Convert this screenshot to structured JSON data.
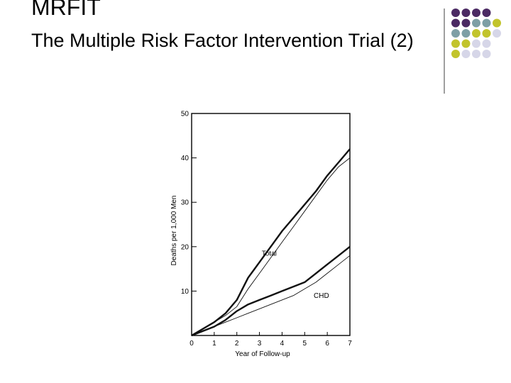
{
  "slide": {
    "title": "MRFIT",
    "subtitle": "The Multiple Risk Factor Intervention Trial (2)"
  },
  "decoration": {
    "colors": {
      "purple": "#4b2a63",
      "teal": "#7e9fa5",
      "olive": "#c2c42c",
      "lilac": "#d6d6e8",
      "divider": "#7f7f7f"
    }
  },
  "chart_data": {
    "type": "line",
    "xlabel": "Year of Follow-up",
    "ylabel": "Deaths per 1,000 Men",
    "xlim": [
      0,
      7
    ],
    "ylim": [
      0,
      50
    ],
    "x_ticks": [
      "0",
      "1",
      "2",
      "3",
      "4",
      "5",
      "6",
      "7"
    ],
    "y_ticks": [
      "10",
      "20",
      "30",
      "40",
      "50"
    ],
    "grid": false,
    "annotations": [
      {
        "text": "Total",
        "x": 3.1,
        "y": 18
      },
      {
        "text": "CHD",
        "x": 5.4,
        "y": 8.5
      }
    ],
    "series": [
      {
        "group": "Total",
        "weight": "thick",
        "x": [
          0,
          0.5,
          1,
          1.5,
          2,
          2.5,
          3,
          3.5,
          4,
          4.5,
          5,
          5.5,
          6,
          6.5,
          7
        ],
        "y": [
          0,
          1.5,
          3,
          5,
          8,
          13,
          16.5,
          20,
          23.5,
          26.5,
          29.5,
          32.5,
          36,
          39,
          42
        ]
      },
      {
        "group": "Total",
        "weight": "thin",
        "x": [
          0,
          0.5,
          1,
          1.5,
          2,
          2.5,
          3,
          3.5,
          4,
          4.5,
          5,
          5.5,
          6,
          6.5,
          7
        ],
        "y": [
          0,
          1.5,
          3,
          4.5,
          6.5,
          10.5,
          14,
          17.5,
          21,
          24.5,
          28,
          31.5,
          35,
          38,
          40
        ]
      },
      {
        "group": "CHD",
        "weight": "thick",
        "x": [
          0,
          0.5,
          1,
          1.5,
          2,
          2.5,
          3,
          3.5,
          4,
          4.5,
          5,
          5.5,
          6,
          6.5,
          7
        ],
        "y": [
          0,
          1,
          2,
          3.5,
          5.5,
          7,
          8,
          9,
          10,
          11,
          12,
          14,
          16,
          18,
          20
        ]
      },
      {
        "group": "CHD",
        "weight": "thin",
        "x": [
          0,
          0.5,
          1,
          1.5,
          2,
          2.5,
          3,
          3.5,
          4,
          4.5,
          5,
          5.5,
          6,
          6.5,
          7
        ],
        "y": [
          0,
          1,
          2,
          3,
          4,
          5,
          6,
          7,
          8,
          9,
          10.5,
          12,
          14,
          16,
          18
        ]
      }
    ]
  }
}
